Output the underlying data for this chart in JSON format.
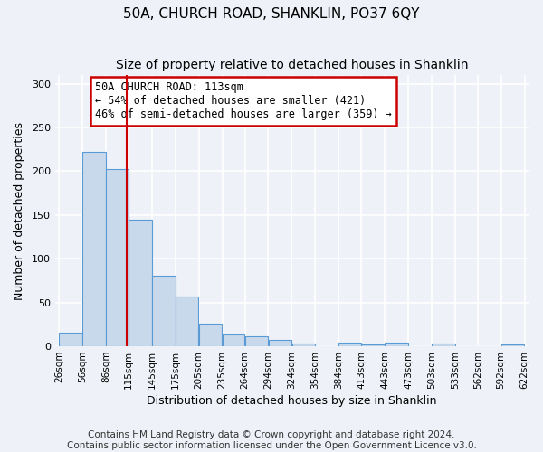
{
  "title": "50A, CHURCH ROAD, SHANKLIN, PO37 6QY",
  "subtitle": "Size of property relative to detached houses in Shanklin",
  "xlabel": "Distribution of detached houses by size in Shanklin",
  "ylabel": "Number of detached properties",
  "footer_line1": "Contains HM Land Registry data © Crown copyright and database right 2024.",
  "footer_line2": "Contains public sector information licensed under the Open Government Licence v3.0.",
  "bar_left_edges": [
    26,
    56,
    86,
    115,
    145,
    175,
    205,
    235,
    264,
    294,
    324,
    354,
    384,
    413,
    443,
    473,
    503,
    533,
    562,
    592
  ],
  "bar_heights": [
    16,
    222,
    203,
    145,
    81,
    57,
    26,
    14,
    11,
    7,
    3,
    0,
    4,
    2,
    4,
    0,
    3,
    0,
    0,
    2
  ],
  "bar_widths": [
    30,
    30,
    29,
    30,
    30,
    30,
    30,
    29,
    30,
    30,
    30,
    30,
    29,
    30,
    30,
    30,
    30,
    29,
    30,
    30
  ],
  "bar_color": "#c9d9ec",
  "bar_edge_color": "#5b9bd5",
  "tick_labels": [
    "26sqm",
    "56sqm",
    "86sqm",
    "115sqm",
    "145sqm",
    "175sqm",
    "205sqm",
    "235sqm",
    "264sqm",
    "294sqm",
    "324sqm",
    "354sqm",
    "384sqm",
    "413sqm",
    "443sqm",
    "473sqm",
    "503sqm",
    "533sqm",
    "562sqm",
    "592sqm",
    "622sqm"
  ],
  "tick_positions": [
    26,
    56,
    86,
    115,
    145,
    175,
    205,
    235,
    264,
    294,
    324,
    354,
    384,
    413,
    443,
    473,
    503,
    533,
    562,
    592,
    622
  ],
  "vline_x": 113,
  "vline_color": "#cc0000",
  "annotation_title": "50A CHURCH ROAD: 113sqm",
  "annotation_line2": "← 54% of detached houses are smaller (421)",
  "annotation_line3": "46% of semi-detached houses are larger (359) →",
  "ylim": [
    0,
    310
  ],
  "yticks": [
    0,
    50,
    100,
    150,
    200,
    250,
    300
  ],
  "background_color": "#eef2f8",
  "grid_color": "#ffffff",
  "title_fontsize": 11,
  "subtitle_fontsize": 10,
  "axis_label_fontsize": 9,
  "tick_fontsize": 7.5,
  "footer_fontsize": 7.5
}
